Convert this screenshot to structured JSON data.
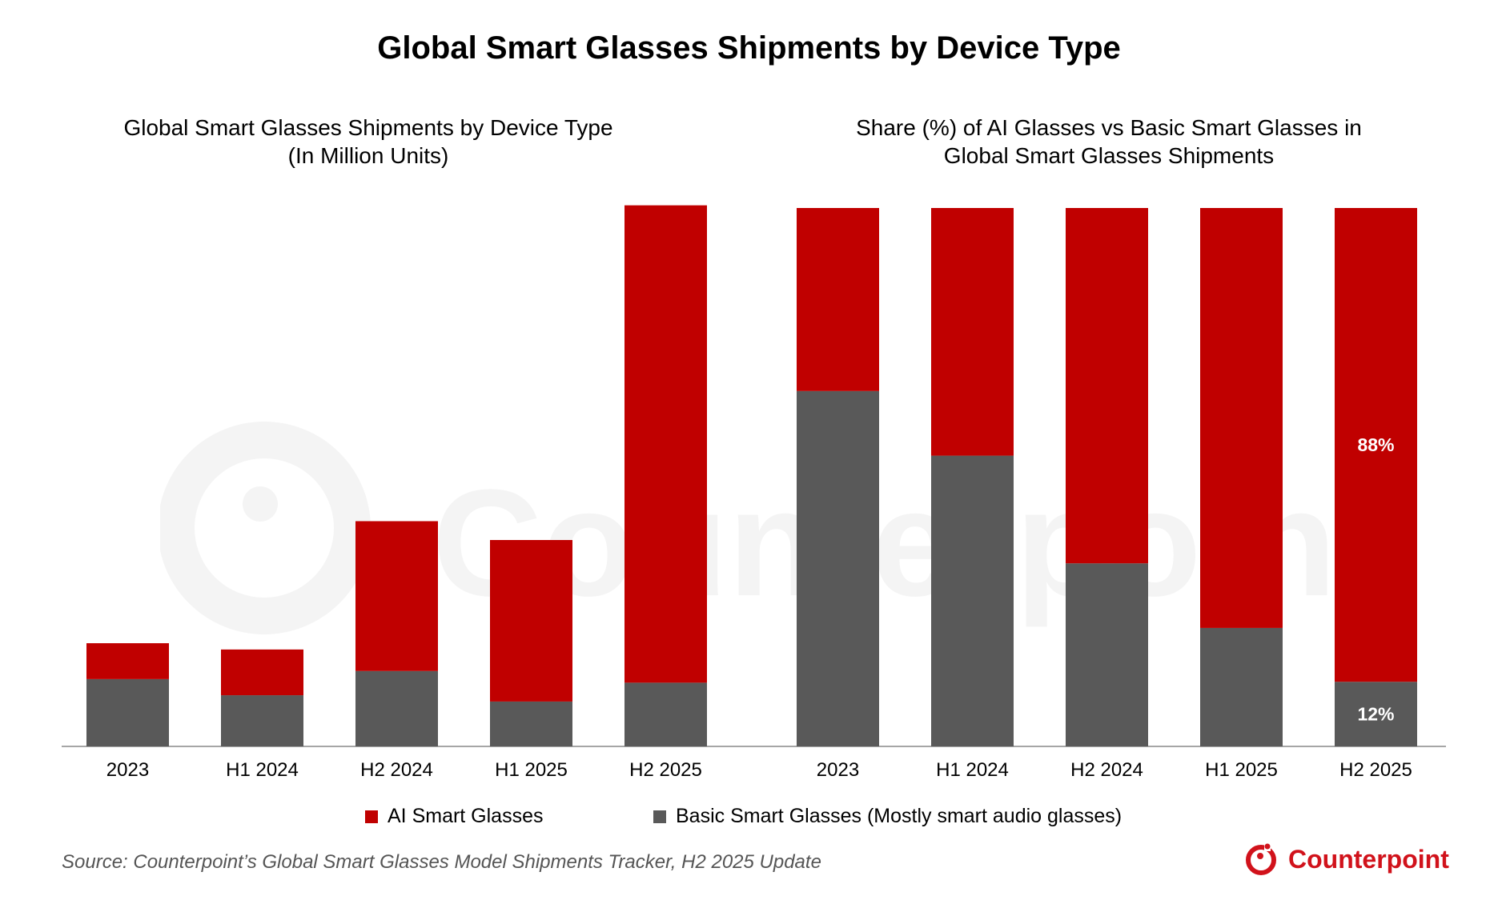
{
  "title": "Global Smart Glasses Shipments by Device Type",
  "colors": {
    "ai": "#c00000",
    "basic": "#595959",
    "brand": "#d1121b"
  },
  "legend": {
    "ai_label": "AI Smart Glasses",
    "basic_label": "Basic Smart Glasses (Mostly smart audio glasses)"
  },
  "source": "Source: Counterpoint’s Global Smart Glasses Model Shipments Tracker, H2 2025 Update",
  "brand": {
    "name": "Counterpoint",
    "watermark": "Counterpoint"
  },
  "chart_data": [
    {
      "type": "bar",
      "stacked": true,
      "title_line1": "Global Smart Glasses Shipments by Device Type",
      "title_line2": "(In Million Units)",
      "categories": [
        "2023",
        "H1 2024",
        "H2 2024",
        "H1 2025",
        "H2 2025"
      ],
      "series": [
        {
          "name": "Basic Smart Glasses (Mostly smart audio glasses)",
          "values": [
            0.75,
            0.57,
            0.84,
            0.5,
            0.71
          ]
        },
        {
          "name": "AI Smart Glasses",
          "values": [
            0.4,
            0.51,
            1.67,
            1.8,
            5.32
          ]
        }
      ],
      "ylim": [
        0,
        6.0
      ]
    },
    {
      "type": "bar",
      "stacked": true,
      "percent": true,
      "title_line1": "Share (%) of AI Glasses vs Basic Smart Glasses in",
      "title_line2": "Global Smart Glasses Shipments",
      "categories": [
        "2023",
        "H1 2024",
        "H2 2024",
        "H1 2025",
        "H2 2025"
      ],
      "series": [
        {
          "name": "Basic Smart Glasses (Mostly smart audio glasses)",
          "values": [
            66,
            54,
            34,
            22,
            12
          ]
        },
        {
          "name": "AI Smart Glasses",
          "values": [
            34,
            46,
            66,
            78,
            88
          ]
        }
      ],
      "data_labels": [
        {
          "category": "H2 2025",
          "series": "AI Smart Glasses",
          "text": "88%"
        },
        {
          "category": "H2 2025",
          "series": "Basic Smart Glasses (Mostly smart audio glasses)",
          "text": "12%"
        }
      ],
      "ylim": [
        0,
        100
      ]
    }
  ]
}
